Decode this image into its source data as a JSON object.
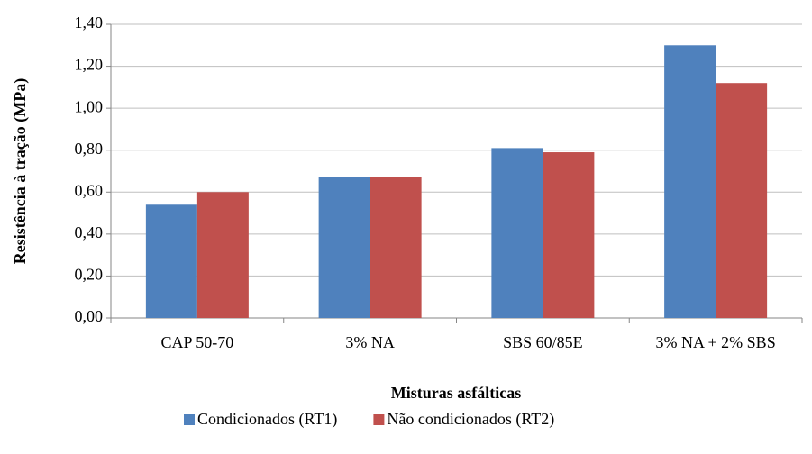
{
  "chart_data": {
    "type": "bar",
    "y_label": "Resistência à tração (MPa)",
    "x_label": "Misturas asfálticas",
    "categories": [
      "CAP 50-70",
      "3% NA",
      "SBS 60/85E",
      "3% NA + 2% SBS"
    ],
    "series": [
      {
        "name": "Condicionados (RT1)",
        "color": "#4f81bd",
        "values": [
          0.54,
          0.67,
          0.81,
          1.3
        ]
      },
      {
        "name": "Não condicionados (RT2)",
        "color": "#c0504d",
        "values": [
          0.6,
          0.67,
          0.79,
          1.12
        ]
      }
    ],
    "ylim": [
      0,
      1.4
    ],
    "yticks": [
      {
        "value": 0,
        "label": "0,00"
      },
      {
        "value": 0.2,
        "label": "0,20"
      },
      {
        "value": 0.4,
        "label": "0,40"
      },
      {
        "value": 0.6,
        "label": "0,60"
      },
      {
        "value": 0.8,
        "label": "0,80"
      },
      {
        "value": 1.0,
        "label": "1,00"
      },
      {
        "value": 1.2,
        "label": "1,20"
      },
      {
        "value": 1.4,
        "label": "1,40"
      }
    ],
    "grid": true,
    "legend": "bottom"
  }
}
